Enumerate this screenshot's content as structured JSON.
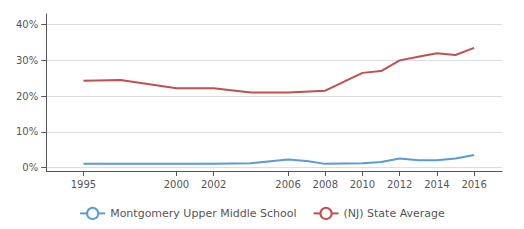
{
  "chart_data": {
    "type": "line",
    "series": [
      {
        "name": "Montgomery Upper Middle School",
        "color": "#5b9bd5",
        "x": [
          1995,
          1997,
          2000,
          2002,
          2004,
          2006,
          2007,
          2008,
          2010,
          2011,
          2012,
          2013,
          2014,
          2015,
          2016
        ],
        "values": [
          1.0,
          1.0,
          1.0,
          1.0,
          1.2,
          2.2,
          1.8,
          1.0,
          1.2,
          1.5,
          2.5,
          2.0,
          2.0,
          2.5,
          3.5
        ]
      },
      {
        "name": "(NJ) State Average",
        "color": "#c0504d",
        "x": [
          1995,
          1997,
          2000,
          2002,
          2004,
          2006,
          2008,
          2010,
          2011,
          2012,
          2013,
          2014,
          2015,
          2016
        ],
        "values": [
          24.3,
          24.5,
          22.2,
          22.2,
          21.0,
          21.0,
          21.5,
          26.5,
          27.0,
          30.0,
          31.0,
          32.0,
          31.5,
          33.5
        ]
      }
    ],
    "xlim": [
      1993,
      2017.5
    ],
    "xticks": [
      1995,
      2000,
      2002,
      2006,
      2008,
      2010,
      2012,
      2014,
      2016
    ],
    "ylim": [
      -1,
      43
    ],
    "yticks": [
      {
        "value": 0,
        "label": "0%"
      },
      {
        "value": 10,
        "label": "10%"
      },
      {
        "value": 20,
        "label": "20%"
      },
      {
        "value": 30,
        "label": "30%"
      },
      {
        "value": 40,
        "label": "40%"
      }
    ],
    "grid": true,
    "legend": "bottom"
  }
}
